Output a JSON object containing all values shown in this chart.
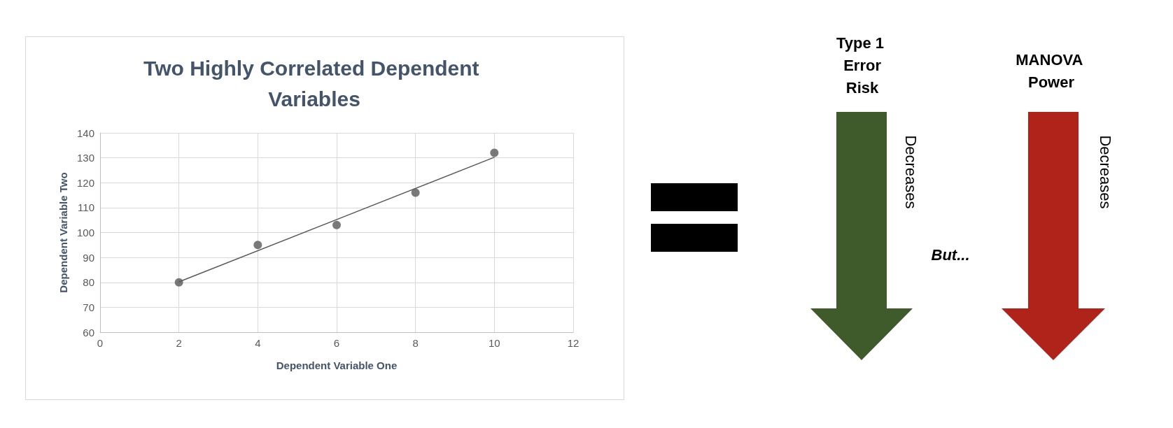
{
  "chart_data": {
    "type": "scatter",
    "title": "Two Highly Correlated Dependent Variables",
    "xlabel": "Dependent Variable One",
    "ylabel": "Dependent Variable Two",
    "x": [
      2,
      4,
      6,
      8,
      10
    ],
    "series": [
      {
        "color": "#595959",
        "values": [
          80,
          95,
          103,
          116,
          132
        ]
      },
      {
        "type": "line",
        "color": "#595959",
        "x": [
          2,
          10
        ],
        "values": [
          80.2,
          130.2
        ],
        "marker": "none"
      }
    ],
    "xlim": [
      0,
      12
    ],
    "xticks": [
      0,
      2,
      4,
      6,
      8,
      10,
      12
    ],
    "ylim": [
      60,
      140
    ],
    "yticks": [
      60,
      70,
      80,
      90,
      100,
      110,
      120,
      130,
      140
    ],
    "grid": true,
    "marker": "circle",
    "annotations": [
      "Type 1 Error Risk",
      "Decreases",
      "MANOVA Power",
      "Decreases",
      "But..."
    ]
  }
}
